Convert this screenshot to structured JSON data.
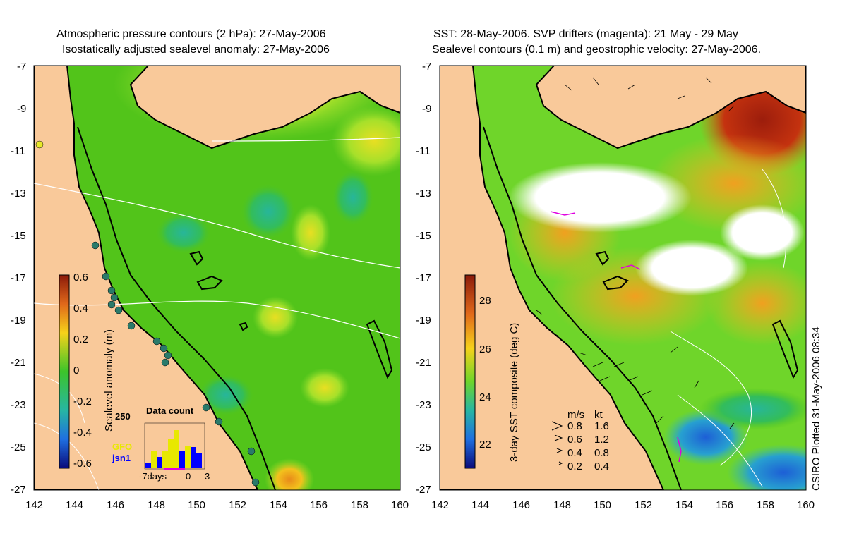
{
  "left_panel": {
    "title_line1": "Atmospheric pressure contours (2 hPa): 27-May-2006",
    "title_line2": "Isostatically adjusted sealevel anomaly: 27-May-2006",
    "colorbar_label": "Sealevel anomaly (m)",
    "colorbar_ticks": [
      "0.6",
      "0.4",
      "0.2",
      "0",
      "-0.2",
      "-0.4",
      "-0.6"
    ],
    "inset": {
      "title": "Data count",
      "ymax_label": "250",
      "legend": [
        "GFO",
        "jsn1"
      ],
      "x_labels": [
        "-7days",
        "0",
        "3"
      ]
    }
  },
  "right_panel": {
    "title_line1": "SST: 28-May-2006. SVP drifters (magenta): 21 May - 29 May",
    "title_line2": "Sealevel contours (0.1 m) and geostrophic velocity: 27-May-2006.",
    "colorbar_label": "3-day SST composite (deg C)",
    "colorbar_ticks": [
      "28",
      "26",
      "24",
      "22"
    ],
    "velocity_legend": {
      "header_ms": "m/s",
      "header_kt": "kt",
      "rows": [
        {
          "ms": "0.8",
          "kt": "1.6"
        },
        {
          "ms": "0.6",
          "kt": "1.2"
        },
        {
          "ms": "0.4",
          "kt": "0.8"
        },
        {
          "ms": "0.2",
          "kt": "0.4"
        }
      ]
    }
  },
  "axes": {
    "y_ticks": [
      "-7",
      "-9",
      "-11",
      "-13",
      "-15",
      "-17",
      "-19",
      "-21",
      "-23",
      "-25",
      "-27"
    ],
    "x_ticks": [
      "142",
      "144",
      "146",
      "148",
      "150",
      "152",
      "154",
      "156",
      "158",
      "160"
    ]
  },
  "credit": "CSIRO Plotted 31-May-2006 08:34",
  "colors": {
    "land": "#f9c99a",
    "ocean_green": "#52c41a",
    "ocean_light": "#9ee22b",
    "anomaly_high": "#e88a1a",
    "anomaly_low": "#2db89a",
    "sst_hot": "#b3210d",
    "sst_warm": "#f0a020",
    "sst_cool": "#1d6fd6"
  }
}
